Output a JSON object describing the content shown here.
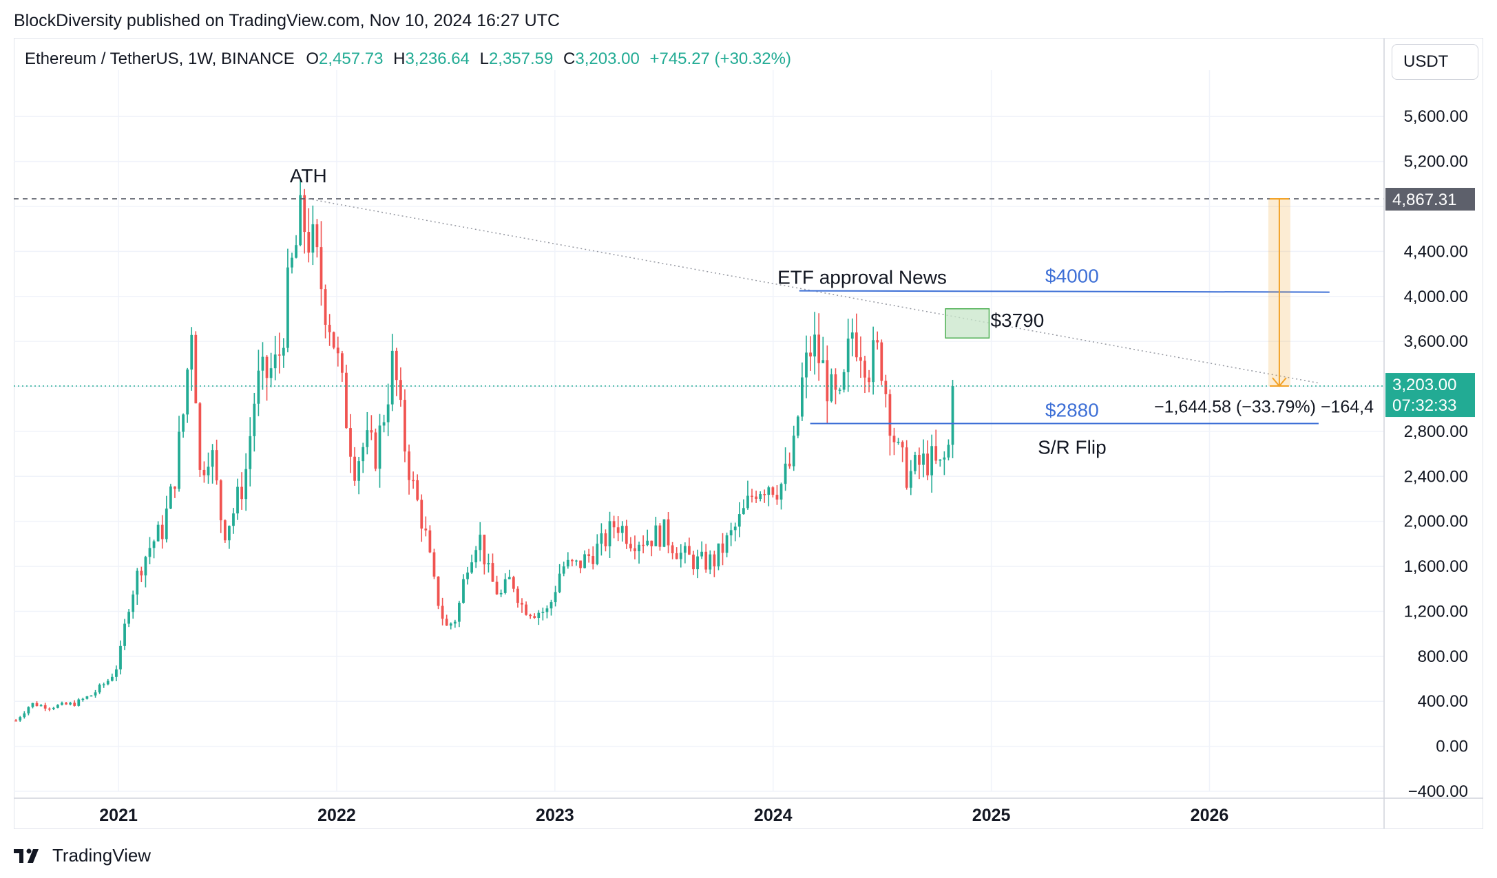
{
  "header": {
    "published": "BlockDiversity published on TradingView.com, Nov 10, 2024 16:27 UTC"
  },
  "legend": {
    "symbol": "Ethereum / TetherUS, 1W, BINANCE",
    "o_label": "O",
    "o_value": "2,457.73",
    "h_label": "H",
    "h_value": "3,236.64",
    "l_label": "L",
    "l_value": "2,357.59",
    "c_label": "C",
    "c_value": "3,203.00",
    "change": "+745.27 (+30.32%)"
  },
  "currency": "USDT",
  "footer": {
    "brand": "TradingView"
  },
  "colors": {
    "up": "#22ab94",
    "down": "#f05350",
    "blue": "#3d6fd6",
    "orange": "#f2a125",
    "grid": "#f0f3fa",
    "tag_price": "#22ab94",
    "tag_ath": "#5d606b"
  },
  "chart_data": {
    "type": "candlestick",
    "symbol": "ETH/USDT",
    "interval": "1W",
    "y_axis": {
      "ticks": [
        -400,
        0,
        400,
        800,
        1200,
        1600,
        2000,
        2400,
        2800,
        3200,
        3600,
        4000,
        4400,
        4800,
        5200,
        5600
      ],
      "tick_labels": [
        "−400.00",
        "0.00",
        "400.00",
        "800.00",
        "1,200.00",
        "1,600.00",
        "2,000.00",
        "2,400.00",
        "2,800.00",
        "",
        "3,600.00",
        "4,000.00",
        "4,400.00",
        "",
        "5,200.00",
        "5,600.00"
      ],
      "range": [
        -400,
        5950
      ]
    },
    "x_axis": {
      "tick_labels": [
        "2021",
        "2022",
        "2023",
        "2024",
        "2025",
        "2026"
      ],
      "ticks": [
        2021,
        2022,
        2023,
        2024,
        2025,
        2026
      ],
      "range": [
        2020.52,
        2026.8
      ]
    },
    "close_path": [
      [
        2020.53,
        230
      ],
      [
        2020.6,
        380
      ],
      [
        2020.68,
        350
      ],
      [
        2020.8,
        380
      ],
      [
        2020.88,
        460
      ],
      [
        2020.96,
        600
      ],
      [
        2021.0,
        740
      ],
      [
        2021.05,
        1300
      ],
      [
        2021.1,
        1600
      ],
      [
        2021.15,
        1800
      ],
      [
        2021.2,
        1920
      ],
      [
        2021.25,
        2300
      ],
      [
        2021.3,
        3000
      ],
      [
        2021.34,
        3900
      ],
      [
        2021.37,
        2400
      ],
      [
        2021.42,
        2700
      ],
      [
        2021.48,
        1900
      ],
      [
        2021.53,
        2100
      ],
      [
        2021.58,
        2400
      ],
      [
        2021.63,
        3200
      ],
      [
        2021.68,
        3300
      ],
      [
        2021.73,
        3400
      ],
      [
        2021.79,
        4200
      ],
      [
        2021.84,
        4700
      ],
      [
        2021.88,
        4500
      ],
      [
        2021.93,
        4100
      ],
      [
        2021.98,
        3700
      ],
      [
        2022.03,
        3100
      ],
      [
        2022.08,
        2500
      ],
      [
        2022.13,
        2700
      ],
      [
        2022.18,
        2600
      ],
      [
        2022.22,
        3000
      ],
      [
        2022.26,
        3450
      ],
      [
        2022.3,
        2800
      ],
      [
        2022.35,
        2300
      ],
      [
        2022.4,
        1950
      ],
      [
        2022.45,
        1400
      ],
      [
        2022.5,
        1050
      ],
      [
        2022.55,
        1150
      ],
      [
        2022.6,
        1650
      ],
      [
        2022.65,
        1900
      ],
      [
        2022.7,
        1500
      ],
      [
        2022.75,
        1330
      ],
      [
        2022.8,
        1500
      ],
      [
        2022.85,
        1250
      ],
      [
        2022.9,
        1200
      ],
      [
        2022.97,
        1200
      ],
      [
        2023.03,
        1600
      ],
      [
        2023.1,
        1600
      ],
      [
        2023.16,
        1700
      ],
      [
        2023.22,
        1800
      ],
      [
        2023.28,
        2000
      ],
      [
        2023.35,
        1850
      ],
      [
        2023.42,
        1850
      ],
      [
        2023.5,
        1900
      ],
      [
        2023.58,
        1700
      ],
      [
        2023.66,
        1630
      ],
      [
        2023.73,
        1650
      ],
      [
        2023.8,
        1850
      ],
      [
        2023.86,
        2050
      ],
      [
        2023.92,
        2300
      ],
      [
        2023.98,
        2350
      ],
      [
        2024.03,
        2300
      ],
      [
        2024.09,
        2550
      ],
      [
        2024.13,
        3200
      ],
      [
        2024.18,
        3600
      ],
      [
        2024.22,
        3400
      ],
      [
        2024.27,
        3100
      ],
      [
        2024.31,
        3000
      ],
      [
        2024.36,
        3700
      ],
      [
        2024.4,
        3600
      ],
      [
        2024.44,
        3400
      ],
      [
        2024.49,
        3500
      ],
      [
        2024.53,
        3000
      ],
      [
        2024.57,
        2600
      ],
      [
        2024.62,
        2400
      ],
      [
        2024.67,
        2500
      ],
      [
        2024.72,
        2550
      ],
      [
        2024.76,
        2450
      ],
      [
        2024.8,
        2600
      ],
      [
        2024.84,
        3203
      ]
    ],
    "annotations": {
      "ath_label": "ATH",
      "ath_price": 4867.31,
      "ath_tag": "4,867.31",
      "etf_label": "ETF approval News",
      "level_4000_label": "$4000",
      "level_4000": 4050,
      "level_3790_label": "$3790",
      "level_2880_label": "$2880",
      "level_2880": 2870,
      "sr_label": "S/R Flip",
      "measure_label": "−1,644.58 (−33.79%) −164,4",
      "current_price_tag": "3,203.00",
      "countdown": "07:32:33"
    }
  }
}
